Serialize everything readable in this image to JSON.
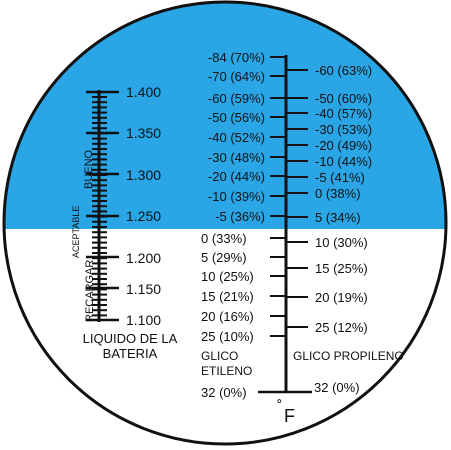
{
  "colors": {
    "upper_field": "#2aa6e6",
    "lower_field": "#ffffff",
    "scale_ink": "#111111"
  },
  "battery_scale": {
    "ticks": [
      "1.400",
      "1.350",
      "1.300",
      "1.250",
      "1.200",
      "1.150",
      "1.100"
    ],
    "zones": {
      "good": "BUENO",
      "acceptable": "ACEPTABLE",
      "recharge": "RECARGAR"
    },
    "caption_line1": "LIQUIDO DE LA",
    "caption_line2": "BATERIA"
  },
  "ethylene_glycol": {
    "labels": [
      "-84 (70%)",
      "-70 (64%)",
      "-60 (59%)",
      "-50 (56%)",
      "-40 (52%)",
      "-30 (48%)",
      "-20 (44%)",
      "-10 (39%)",
      "-5 (36%)",
      "0 (33%)",
      "5 (29%)",
      "10 (25%)",
      "15 (21%)",
      "20 (16%)",
      "25 (10%)"
    ],
    "caption_line1": "GLICO",
    "caption_line2": "ETILENO",
    "bottom_label": "32 (0%)"
  },
  "propylene_glycol": {
    "labels": [
      "-60 (63%)",
      "-50 (60%)",
      "-40 (57%)",
      "-30 (53%)",
      "-20 (49%)",
      "-10 (44%)",
      "-5 (41%)",
      "0 (38%)",
      "5 (34%)",
      "10 (30%)",
      "15 (25%)",
      "20 (19%)",
      "25 (12%)"
    ],
    "caption": "GLICO PROPILENO",
    "bottom_label": "32 (0%)"
  },
  "unit": {
    "degree": "˚",
    "letter": "F"
  }
}
